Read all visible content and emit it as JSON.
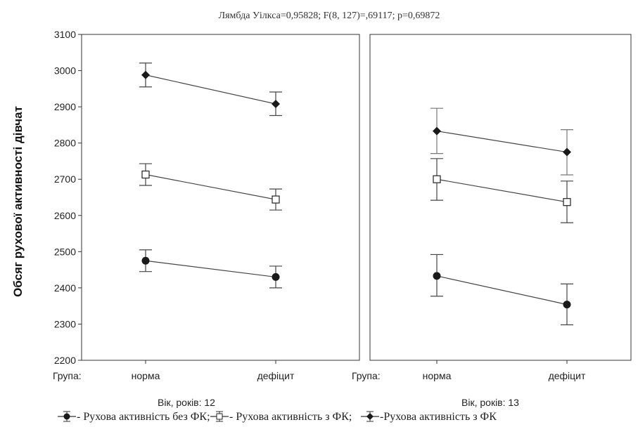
{
  "chart_data": {
    "type": "line",
    "title": "Лямбда Уілкса=0,95828; F(8, 127)=,69117; p=0,69872",
    "ylabel": "Обсяг рухової активності дівчат",
    "ylim": [
      2200,
      3100
    ],
    "yticks": [
      2200,
      2300,
      2400,
      2500,
      2600,
      2700,
      2800,
      2900,
      3000,
      3100
    ],
    "grid": false,
    "group_label": "Група:",
    "categories": [
      "норма",
      "дефіцит"
    ],
    "legend": {
      "placement": "bottom",
      "entries": [
        {
          "name": " - Рухова активність без ФК;",
          "marker": "filled-circle"
        },
        {
          "name": " - Рухова активність з ФК;",
          "marker": "open-square"
        },
        {
          "name": " -Рухова активність з ФК",
          "marker": "filled-diamond"
        }
      ]
    },
    "panels": [
      {
        "label": "Вік, років: 12",
        "series": [
          {
            "name": "Рухова активність без ФК",
            "marker": "filled-circle",
            "values": [
              2475,
              2430
            ],
            "err_low": [
              2445,
              2400
            ],
            "err_high": [
              2505,
              2460
            ]
          },
          {
            "name": "Рухова активність з ФК",
            "marker": "open-square",
            "values": [
              2713,
              2644
            ],
            "err_low": [
              2683,
              2615
            ],
            "err_high": [
              2743,
              2673
            ]
          },
          {
            "name": "Рухова активність з ФК",
            "marker": "filled-diamond",
            "values": [
              2988,
              2908
            ],
            "err_low": [
              2955,
              2876
            ],
            "err_high": [
              3021,
              2941
            ]
          }
        ]
      },
      {
        "label": "Вік, років: 13",
        "series": [
          {
            "name": "Рухова активність без ФК",
            "marker": "filled-circle",
            "values": [
              2433,
              2354
            ],
            "err_low": [
              2377,
              2298
            ],
            "err_high": [
              2492,
              2411
            ]
          },
          {
            "name": "Рухова активність з ФК",
            "marker": "open-square",
            "values": [
              2700,
              2637
            ],
            "err_low": [
              2642,
              2580
            ],
            "err_high": [
              2757,
              2695
            ]
          },
          {
            "name": "Рухова активність з ФК",
            "marker": "filled-diamond",
            "values": [
              2833,
              2775
            ],
            "err_low": [
              2771,
              2712
            ],
            "err_high": [
              2896,
              2837
            ]
          }
        ]
      }
    ]
  }
}
